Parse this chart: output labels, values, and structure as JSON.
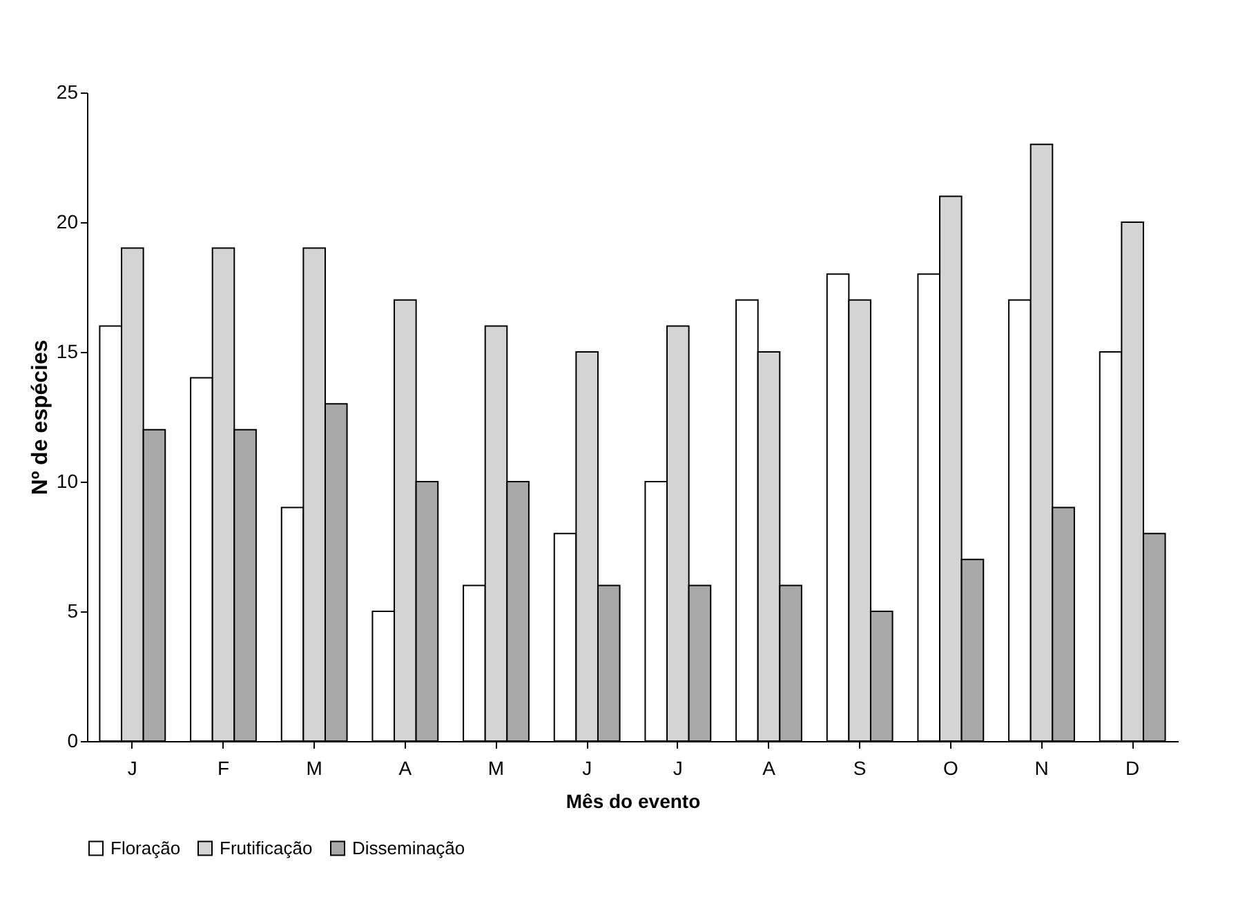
{
  "chart_data": {
    "type": "bar",
    "xlabel": "Mês do evento",
    "ylabel": "Nº de espécies",
    "categories": [
      "J",
      "F",
      "M",
      "A",
      "M",
      "J",
      "J",
      "A",
      "S",
      "O",
      "N",
      "D"
    ],
    "series": [
      {
        "name": "Floração",
        "color": "#ffffff",
        "values": [
          16,
          14,
          9,
          5,
          6,
          8,
          10,
          17,
          18,
          18,
          17,
          15
        ]
      },
      {
        "name": "Frutificação",
        "color": "#d4d4d4",
        "values": [
          19,
          19,
          19,
          17,
          16,
          15,
          16,
          15,
          17,
          21,
          23,
          20
        ]
      },
      {
        "name": "Disseminação",
        "color": "#a9a9a9",
        "values": [
          12,
          12,
          13,
          10,
          10,
          6,
          6,
          6,
          5,
          7,
          9,
          8
        ]
      }
    ],
    "ylim": [
      0,
      25
    ],
    "yticks": [
      0,
      5,
      10,
      15,
      20,
      25
    ],
    "grid": false,
    "legend": "bottom"
  }
}
